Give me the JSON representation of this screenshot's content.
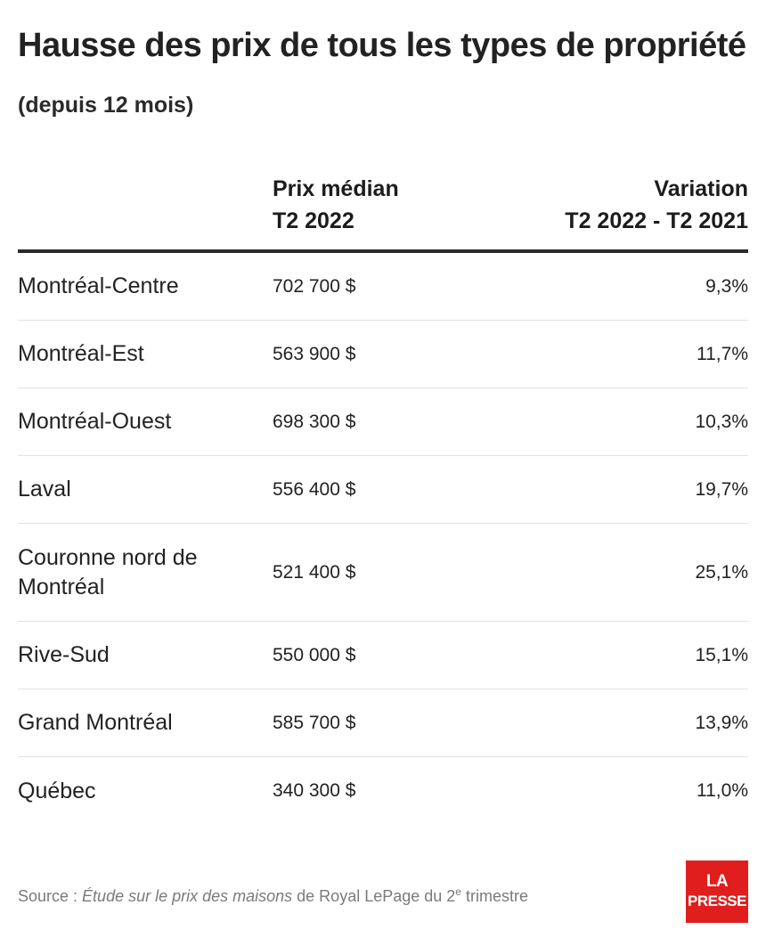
{
  "chart_data": {
    "type": "table",
    "title": "Hausse des prix de tous les types de propriété",
    "subtitle": "(depuis 12 mois)",
    "columns": [
      {
        "label_line1": "",
        "label_line2": ""
      },
      {
        "label_line1": "Prix médian",
        "label_line2": "T2 2022"
      },
      {
        "label_line1": "Variation",
        "label_line2": "T2 2022 - T2 2021"
      }
    ],
    "rows": [
      {
        "region": "Montréal-Centre",
        "price": "702 700 $",
        "change": "9,3%"
      },
      {
        "region": "Montréal-Est",
        "price": "563 900 $",
        "change": "11,7%"
      },
      {
        "region": "Montréal-Ouest",
        "price": "698 300 $",
        "change": "10,3%"
      },
      {
        "region": "Laval",
        "price": "556 400 $",
        "change": "19,7%"
      },
      {
        "region": "Couronne nord de Montréal",
        "price": "521 400 $",
        "change": "25,1%"
      },
      {
        "region": "Rive-Sud",
        "price": "550 000 $",
        "change": "15,1%"
      },
      {
        "region": "Grand Montréal",
        "price": "585 700 $",
        "change": "13,9%"
      },
      {
        "region": "Québec",
        "price": "340 300 $",
        "change": "11,0%"
      }
    ]
  },
  "source": {
    "prefix": "Source : ",
    "study": "Étude sur le prix des maisons",
    "middle": " de Royal LePage du 2",
    "sup": "e",
    "suffix": " trimestre"
  },
  "logo": {
    "line1": "LA",
    "line2": "PRESSE"
  },
  "colors": {
    "brand": "#e01e1e",
    "text": "#222222",
    "rule": "#2b2b2b"
  }
}
